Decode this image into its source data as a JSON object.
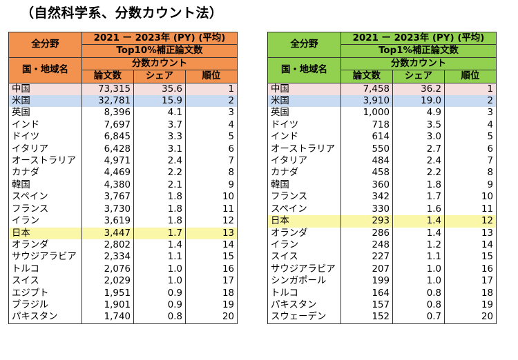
{
  "title": "（自然科学系、分数カウント法）",
  "tables": [
    {
      "header": {
        "all_field": "全分野",
        "period": "2021 ー 2023年 (PY) (平均)",
        "metric": "Top10%補正論文数",
        "country": "国・地域名",
        "count_method": "分数カウント",
        "col_papers": "論文数",
        "col_share": "シェア",
        "col_rank": "順位"
      },
      "rows": [
        {
          "country": "中国",
          "papers": "73,315",
          "share": "35.6",
          "rank": "1",
          "hl": "cn"
        },
        {
          "country": "米国",
          "papers": "32,781",
          "share": "15.9",
          "rank": "2",
          "hl": "us"
        },
        {
          "country": "英国",
          "papers": "8,396",
          "share": "4.1",
          "rank": "3"
        },
        {
          "country": "インド",
          "papers": "7,697",
          "share": "3.7",
          "rank": "4"
        },
        {
          "country": "ドイツ",
          "papers": "6,845",
          "share": "3.3",
          "rank": "5"
        },
        {
          "country": "イタリア",
          "papers": "6,428",
          "share": "3.1",
          "rank": "6"
        },
        {
          "country": "オーストラリア",
          "papers": "4,971",
          "share": "2.4",
          "rank": "7"
        },
        {
          "country": "カナダ",
          "papers": "4,469",
          "share": "2.2",
          "rank": "8"
        },
        {
          "country": "韓国",
          "papers": "4,380",
          "share": "2.1",
          "rank": "9"
        },
        {
          "country": "スペイン",
          "papers": "3,767",
          "share": "1.8",
          "rank": "10"
        },
        {
          "country": "フランス",
          "papers": "3,730",
          "share": "1.8",
          "rank": "11"
        },
        {
          "country": "イラン",
          "papers": "3,619",
          "share": "1.8",
          "rank": "12"
        },
        {
          "country": "日本",
          "papers": "3,447",
          "share": "1.7",
          "rank": "13",
          "hl": "jp"
        },
        {
          "country": "オランダ",
          "papers": "2,802",
          "share": "1.4",
          "rank": "14"
        },
        {
          "country": "サウジアラビア",
          "papers": "2,334",
          "share": "1.1",
          "rank": "15"
        },
        {
          "country": "トルコ",
          "papers": "2,076",
          "share": "1.0",
          "rank": "16"
        },
        {
          "country": "スイス",
          "papers": "2,029",
          "share": "1.0",
          "rank": "17"
        },
        {
          "country": "エジプト",
          "papers": "1,951",
          "share": "0.9",
          "rank": "18"
        },
        {
          "country": "ブラジル",
          "papers": "1,901",
          "share": "0.9",
          "rank": "19"
        },
        {
          "country": "パキスタン",
          "papers": "1,740",
          "share": "0.8",
          "rank": "20"
        }
      ]
    },
    {
      "header": {
        "all_field": "全分野",
        "period": "2021 ー 2023年 (PY) (平均)",
        "metric": "Top1%補正論文数",
        "country": "国・地域名",
        "count_method": "分数カウント",
        "col_papers": "論文数",
        "col_share": "シェア",
        "col_rank": "順位"
      },
      "rows": [
        {
          "country": "中国",
          "papers": "7,458",
          "share": "36.2",
          "rank": "1",
          "hl": "cn"
        },
        {
          "country": "米国",
          "papers": "3,910",
          "share": "19.0",
          "rank": "2",
          "hl": "us"
        },
        {
          "country": "英国",
          "papers": "1,000",
          "share": "4.9",
          "rank": "3"
        },
        {
          "country": "ドイツ",
          "papers": "718",
          "share": "3.5",
          "rank": "4"
        },
        {
          "country": "インド",
          "papers": "614",
          "share": "3.0",
          "rank": "5"
        },
        {
          "country": "オーストラリア",
          "papers": "550",
          "share": "2.7",
          "rank": "6"
        },
        {
          "country": "イタリア",
          "papers": "484",
          "share": "2.4",
          "rank": "7"
        },
        {
          "country": "カナダ",
          "papers": "458",
          "share": "2.2",
          "rank": "8"
        },
        {
          "country": "韓国",
          "papers": "360",
          "share": "1.8",
          "rank": "9"
        },
        {
          "country": "フランス",
          "papers": "342",
          "share": "1.7",
          "rank": "10"
        },
        {
          "country": "スペイン",
          "papers": "330",
          "share": "1.6",
          "rank": "11"
        },
        {
          "country": "日本",
          "papers": "293",
          "share": "1.4",
          "rank": "12",
          "hl": "jp"
        },
        {
          "country": "オランダ",
          "papers": "286",
          "share": "1.4",
          "rank": "13"
        },
        {
          "country": "イラン",
          "papers": "248",
          "share": "1.2",
          "rank": "14"
        },
        {
          "country": "スイス",
          "papers": "227",
          "share": "1.1",
          "rank": "15"
        },
        {
          "country": "サウジアラビア",
          "papers": "207",
          "share": "1.0",
          "rank": "16"
        },
        {
          "country": "シンガポール",
          "papers": "199",
          "share": "1.0",
          "rank": "17"
        },
        {
          "country": "トルコ",
          "papers": "164",
          "share": "0.8",
          "rank": "18"
        },
        {
          "country": "パキスタン",
          "papers": "157",
          "share": "0.8",
          "rank": "19"
        },
        {
          "country": "スウェーデン",
          "papers": "152",
          "share": "0.7",
          "rank": "20"
        }
      ]
    }
  ]
}
